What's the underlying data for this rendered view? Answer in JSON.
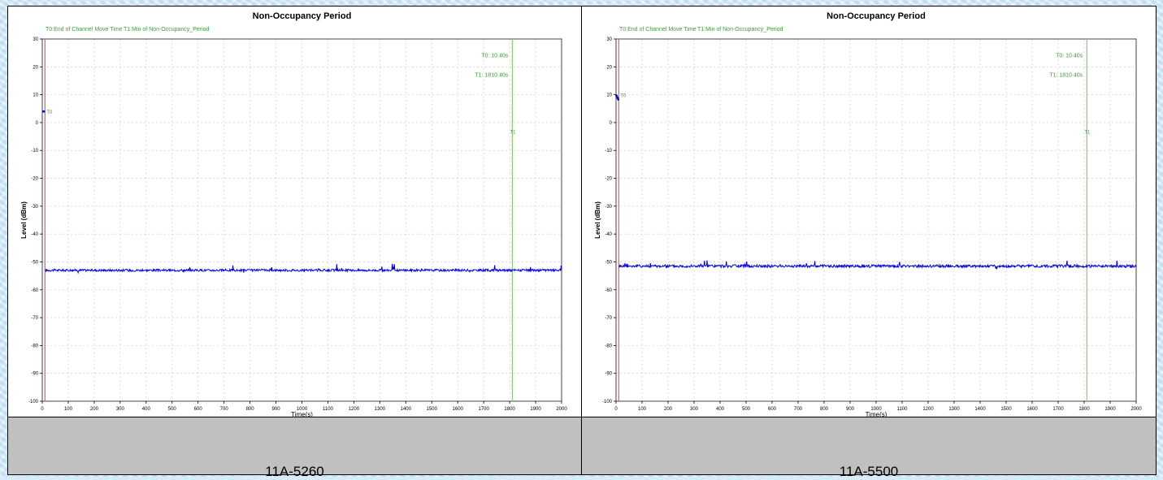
{
  "captions": [
    "11A-5260",
    "11A-5500"
  ],
  "chart_data": [
    {
      "type": "line",
      "title": "Non-Occupancy Period",
      "xlabel": "Time(s)",
      "ylabel": "Level (dBm)",
      "xlim": [
        0,
        2000
      ],
      "ylim": [
        -100,
        30
      ],
      "xticks": [
        0,
        100,
        200,
        300,
        400,
        500,
        600,
        700,
        800,
        900,
        1000,
        1100,
        1200,
        1300,
        1400,
        1500,
        1600,
        1700,
        1800,
        1900,
        2000
      ],
      "yticks": [
        30,
        20,
        10,
        0,
        -10,
        -20,
        -30,
        -40,
        -50,
        -60,
        -70,
        -80,
        -90,
        -100
      ],
      "grid": true,
      "legend": [
        "T0:End of Channel Move Time",
        "T1:Min of Non-Occupancy_Period"
      ],
      "annotations": [
        "T0: 10.40s",
        "T1: 1810.40s"
      ],
      "marker_labels": [
        "T0",
        "T1"
      ],
      "markers": [
        {
          "name": "T0",
          "x": 10.4
        },
        {
          "name": "T1",
          "x": 1810.4
        }
      ],
      "series": [
        {
          "level": -53,
          "noise": 0.4,
          "initial_points": [
            [
              0,
              4
            ],
            [
              5,
              4
            ],
            [
              10,
              4
            ]
          ],
          "color": "#0000e0"
        }
      ]
    },
    {
      "type": "line",
      "title": "Non-Occupancy Period",
      "xlabel": "Time(s)",
      "ylabel": "Level (dBm)",
      "xlim": [
        0,
        2000
      ],
      "ylim": [
        -100,
        30
      ],
      "xticks": [
        0,
        100,
        200,
        300,
        400,
        500,
        600,
        700,
        800,
        900,
        1000,
        1100,
        1200,
        1300,
        1400,
        1500,
        1600,
        1700,
        1800,
        1900,
        2000
      ],
      "yticks": [
        30,
        20,
        10,
        0,
        -10,
        -20,
        -30,
        -40,
        -50,
        -60,
        -70,
        -80,
        -90,
        -100
      ],
      "grid": true,
      "legend": [
        "T0:End of Channel Move Time",
        "T1:Min of Non-Occupancy_Period"
      ],
      "annotations": [
        "T0: 10.40s",
        "T1: 1810.40s"
      ],
      "marker_labels": [
        "T0",
        "T1"
      ],
      "markers": [
        {
          "name": "T0",
          "x": 10.4
        },
        {
          "name": "T1",
          "x": 1810.4
        }
      ],
      "series": [
        {
          "level": -51.5,
          "noise": 0.5,
          "initial_points": [
            [
              0,
              10
            ],
            [
              5,
              9
            ],
            [
              10,
              8
            ]
          ],
          "color": "#0000e0"
        }
      ]
    }
  ],
  "colors": {
    "signal": "#0000e0",
    "marker_t0": "#e06060",
    "marker_t1": "#90c878",
    "annotation_text": "#3c9a3c",
    "caption_bg": "#c0c0c0"
  }
}
